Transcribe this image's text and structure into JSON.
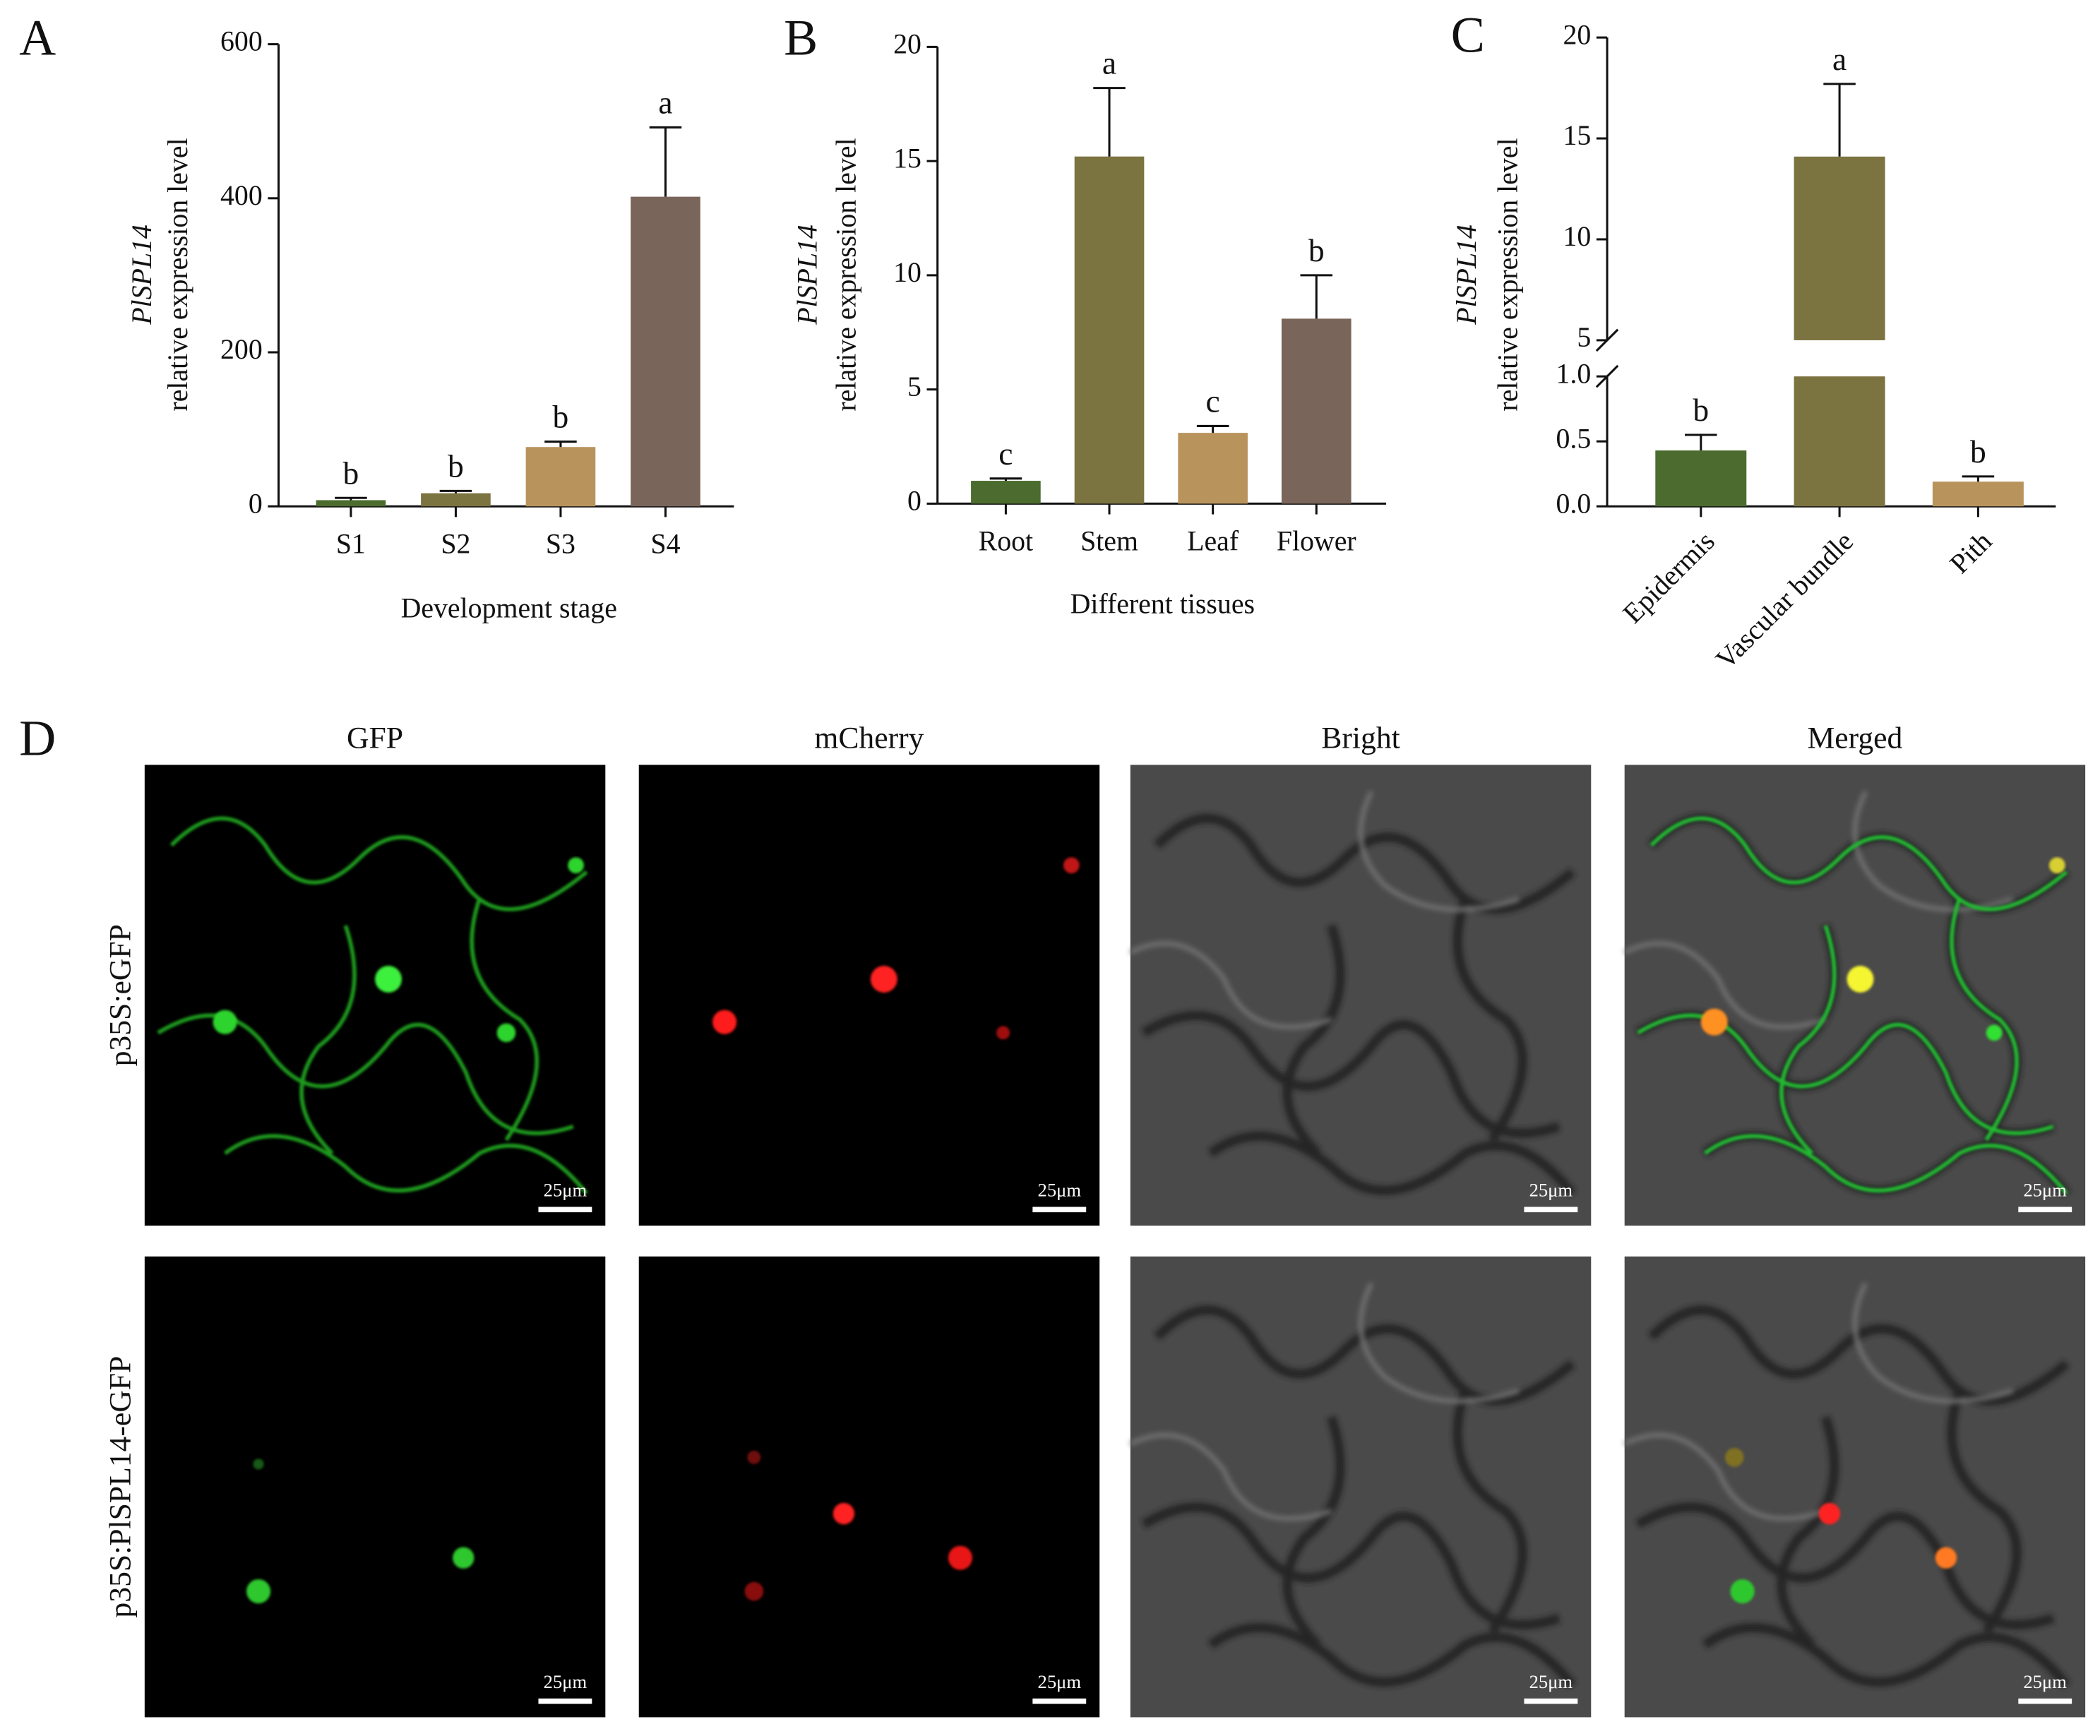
{
  "chart_data": [
    {
      "type": "bar",
      "panel_label": "A",
      "ylabel_gene": "PlSPL14",
      "ylabel": "relative expression level",
      "xlabel": "Development stage",
      "categories": [
        "S1",
        "S2",
        "S3",
        "S4"
      ],
      "values": [
        8,
        17,
        77,
        402
      ],
      "errors": [
        3,
        3,
        7,
        90
      ],
      "sig_labels": [
        "b",
        "b",
        "b",
        "a"
      ],
      "colors": [
        "#4b6b2f",
        "#7b7340",
        "#b8945c",
        "#7a655a"
      ],
      "ylim": [
        0,
        600
      ],
      "yticks": [
        0,
        200,
        400,
        600
      ]
    },
    {
      "type": "bar",
      "panel_label": "B",
      "ylabel_gene": "PlSPL14",
      "ylabel": "relative expression level",
      "xlabel": "Different tissues",
      "categories": [
        "Root",
        "Stem",
        "Leaf",
        "Flower"
      ],
      "values": [
        1.0,
        15.2,
        3.1,
        8.1
      ],
      "errors": [
        0.1,
        3.0,
        0.3,
        1.9
      ],
      "sig_labels": [
        "c",
        "a",
        "c",
        "b"
      ],
      "colors": [
        "#4b6b2f",
        "#7b7340",
        "#b8945c",
        "#7a655a"
      ],
      "ylim": [
        0,
        20
      ],
      "yticks": [
        0,
        5,
        10,
        15,
        20
      ]
    },
    {
      "type": "broken_bar",
      "panel_label": "C",
      "ylabel_gene": "PlSPL14",
      "ylabel": "relative expression level",
      "categories": [
        "Epidermis",
        "Vascular bundle",
        "Pith"
      ],
      "values": [
        0.43,
        14.1,
        0.19
      ],
      "errors": [
        0.12,
        3.6,
        0.04
      ],
      "sig_labels": [
        "b",
        "a",
        "b"
      ],
      "colors": [
        "#4b6b2f",
        "#7b7340",
        "#b8945c"
      ],
      "ylim_lower": [
        0,
        1.0
      ],
      "yticks_lower": [
        {
          "value": 0,
          "label": "0.0"
        },
        0.5,
        {
          "value": 1.0,
          "label": "1.0"
        }
      ],
      "ylim_upper": [
        5,
        20
      ],
      "yticks_upper": [
        5,
        10,
        15,
        20
      ]
    }
  ],
  "panel_d": {
    "label": "D",
    "columns": [
      "GFP",
      "mCherry",
      "Bright",
      "Merged"
    ],
    "rows": [
      "p35S:eGFP",
      "p35S:PlSPL14-eGFP"
    ],
    "scale_bar": "25μm"
  }
}
